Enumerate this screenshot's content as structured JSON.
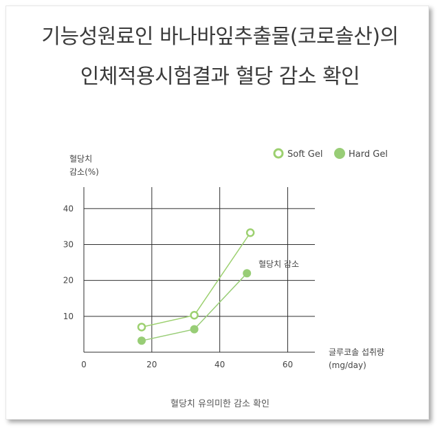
{
  "title": {
    "line1": "기능성원료인 바나바잎추출물(코로솔산)의",
    "line2": "인체적용시험결과 혈당 감소 확인"
  },
  "caption": "혈당치 유의미한 감소 확인",
  "colors": {
    "soft_gel": "#9cd06f",
    "hard_gel": "#98cd76",
    "grid": "#2e2e2e",
    "text": "#444444"
  },
  "chart_data": {
    "type": "line",
    "ylabel_lines": [
      "혈당치",
      "감소(%)"
    ],
    "xlabel_lines": [
      "글루코솔 섭취량",
      "(mg/day)"
    ],
    "x_ticks": [
      0,
      20,
      40,
      60
    ],
    "y_ticks": [
      10,
      20,
      30,
      40
    ],
    "xlim": [
      0,
      68
    ],
    "ylim": [
      0,
      46
    ],
    "grid": true,
    "legend_position": "top-right",
    "annotation": "혈당치 감소",
    "series": [
      {
        "name": "Soft Gel",
        "marker": "hollow",
        "x": [
          17,
          32.5,
          49
        ],
        "y": [
          7,
          10.3,
          33.3
        ]
      },
      {
        "name": "Hard Gel",
        "marker": "filled",
        "x": [
          17,
          32.5,
          48
        ],
        "y": [
          3.2,
          6.4,
          22
        ]
      }
    ]
  }
}
